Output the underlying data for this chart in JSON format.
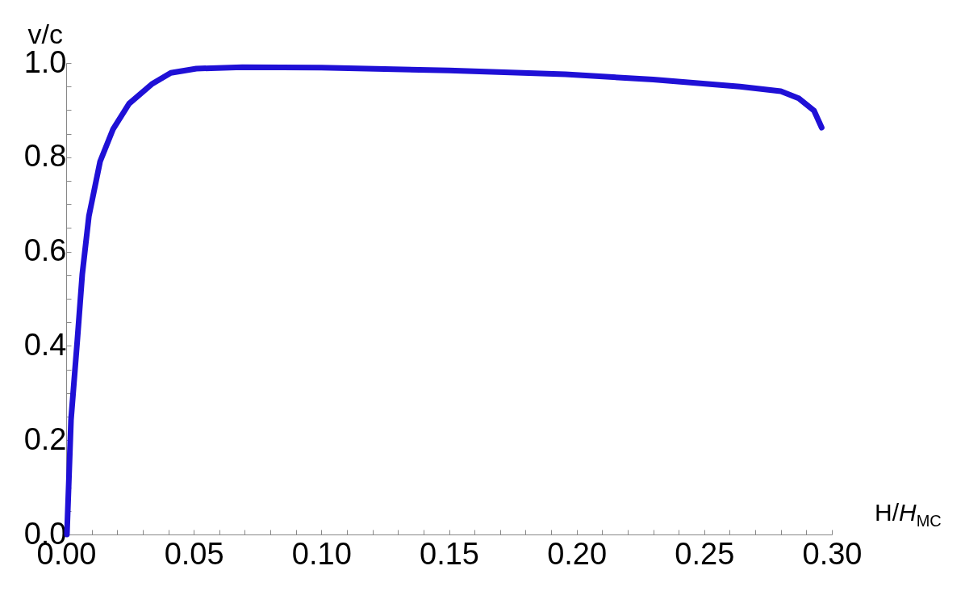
{
  "chart_data": {
    "type": "line",
    "xlabel": "H/H$_{MC}$",
    "ylabel": "v/c",
    "x": [
      0.0003,
      0.0019,
      0.0044,
      0.0063,
      0.0089,
      0.0133,
      0.0184,
      0.0247,
      0.0335,
      0.041,
      0.051,
      0.069,
      0.1,
      0.15,
      0.1956,
      0.23,
      0.264,
      0.28,
      0.287,
      0.293,
      0.296
    ],
    "series": [
      {
        "color": "#1f10d6",
        "values": [
          0,
          0.243,
          0.414,
          0.551,
          0.675,
          0.791,
          0.86,
          0.914,
          0.955,
          0.979,
          0.988,
          0.991,
          0.99,
          0.984,
          0.976,
          0.965,
          0.95,
          0.94,
          0.925,
          0.899,
          0.863
        ]
      }
    ],
    "xlim": [
      0,
      0.3
    ],
    "ylim": [
      0,
      1.0
    ],
    "xticks": [
      {
        "value": 0,
        "label": "0.00"
      },
      {
        "value": 0.01,
        "label": null
      },
      {
        "value": 0.02,
        "label": null
      },
      {
        "value": 0.03,
        "label": null
      },
      {
        "value": 0.04,
        "label": null
      },
      {
        "value": 0.05,
        "label": "0.05"
      },
      {
        "value": 0.06,
        "label": null
      },
      {
        "value": 0.07,
        "label": null
      },
      {
        "value": 0.08,
        "label": null
      },
      {
        "value": 0.09,
        "label": null
      },
      {
        "value": 0.1,
        "label": "0.10"
      },
      {
        "value": 0.11,
        "label": null
      },
      {
        "value": 0.12,
        "label": null
      },
      {
        "value": 0.13,
        "label": null
      },
      {
        "value": 0.14,
        "label": null
      },
      {
        "value": 0.15,
        "label": "0.15"
      },
      {
        "value": 0.16,
        "label": null
      },
      {
        "value": 0.17,
        "label": null
      },
      {
        "value": 0.18,
        "label": null
      },
      {
        "value": 0.19,
        "label": null
      },
      {
        "value": 0.2,
        "label": "0.20"
      },
      {
        "value": 0.21,
        "label": null
      },
      {
        "value": 0.22,
        "label": null
      },
      {
        "value": 0.23,
        "label": null
      },
      {
        "value": 0.24,
        "label": null
      },
      {
        "value": 0.25,
        "label": "0.25"
      },
      {
        "value": 0.26,
        "label": null
      },
      {
        "value": 0.27,
        "label": null
      },
      {
        "value": 0.28,
        "label": null
      },
      {
        "value": 0.29,
        "label": null
      },
      {
        "value": 0.3,
        "label": "0.30"
      }
    ],
    "yticks": [
      {
        "value": 0,
        "label": "0.0"
      },
      {
        "value": 0.05,
        "label": null
      },
      {
        "value": 0.1,
        "label": null
      },
      {
        "value": 0.15,
        "label": null
      },
      {
        "value": 0.2,
        "label": "0.2"
      },
      {
        "value": 0.25,
        "label": null
      },
      {
        "value": 0.3,
        "label": null
      },
      {
        "value": 0.35,
        "label": null
      },
      {
        "value": 0.4,
        "label": "0.4"
      },
      {
        "value": 0.45,
        "label": null
      },
      {
        "value": 0.5,
        "label": null
      },
      {
        "value": 0.55,
        "label": null
      },
      {
        "value": 0.6,
        "label": "0.6"
      },
      {
        "value": 0.65,
        "label": null
      },
      {
        "value": 0.7,
        "label": null
      },
      {
        "value": 0.75,
        "label": null
      },
      {
        "value": 0.8,
        "label": "0.8"
      },
      {
        "value": 0.85,
        "label": null
      },
      {
        "value": 0.9,
        "label": null
      },
      {
        "value": 0.95,
        "label": null
      },
      {
        "value": 1.0,
        "label": "1.0"
      }
    ],
    "grid": false,
    "marker": "none",
    "line_style": "solid"
  }
}
